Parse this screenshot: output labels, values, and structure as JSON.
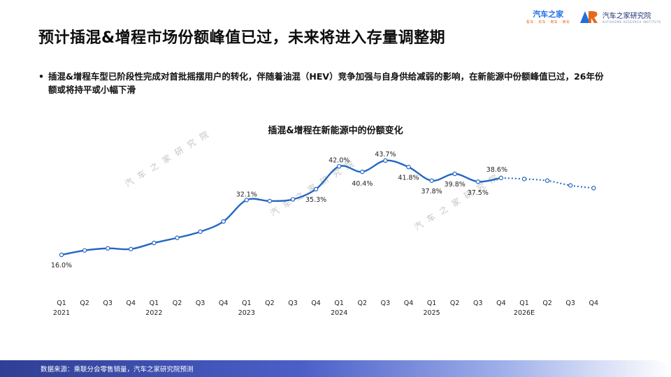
{
  "header": {
    "title": "预计插混&增程市场份额峰值已过，未来将进入存量调整期",
    "logo_primary": "汽车之家",
    "logo_primary_sub": "看车 · 买车 · 用车 · 换车",
    "logo_secondary": "汽车之家研究院",
    "logo_secondary_sub": "AUTOHOME RESEARCH INSTITUTE"
  },
  "bullet": {
    "symbol": "•",
    "text": "插混&增程车型已阶段性完成对首批摇摆用户的转化，伴随着油混（HEV）竞争加强与自身供给减弱的影响，在新能源中份额峰值已过，26年份额或将持平或小幅下滑"
  },
  "watermark": "汽车之家研究院",
  "chart_data": {
    "type": "line",
    "title": "插混&增程在新能源中的份额变化",
    "categories": [
      "Q1",
      "Q2",
      "Q3",
      "Q4",
      "Q1",
      "Q2",
      "Q3",
      "Q4",
      "Q1",
      "Q2",
      "Q3",
      "Q4",
      "Q1",
      "Q2",
      "Q3",
      "Q4",
      "Q1",
      "Q2",
      "Q3",
      "Q4",
      "Q1",
      "Q2",
      "Q3",
      "Q4"
    ],
    "year_labels": [
      "2021",
      "",
      "",
      "",
      "2022",
      "",
      "",
      "",
      "2023",
      "",
      "",
      "",
      "2024",
      "",
      "",
      "",
      "2025",
      "",
      "",
      "",
      "2026E",
      "",
      "",
      ""
    ],
    "series": [
      {
        "color": "#2566c2",
        "values": [
          16.0,
          17.3,
          17.9,
          17.7,
          19.5,
          21.0,
          22.8,
          25.8,
          32.1,
          31.8,
          32.3,
          35.3,
          42.0,
          40.4,
          43.7,
          41.8,
          37.8,
          39.8,
          37.5,
          38.6,
          38.3,
          37.8,
          36.4,
          35.6
        ],
        "data_labels": [
          "16.0%",
          "",
          "",
          "",
          "",
          "",
          "",
          "",
          "32.1%",
          "",
          "",
          "35.3%",
          "42.0%",
          "40.4%",
          "43.7%",
          "41.8%",
          "37.8%",
          "39.8%",
          "37.5%",
          "38.6%",
          "",
          "",
          "",
          ""
        ],
        "forecast_from_index": 19
      }
    ],
    "xlabel": "",
    "ylabel": "",
    "grid": false,
    "legend": "none"
  },
  "footer": {
    "source": "数据来源：乘联分会零售销量，汽车之家研究院预测"
  }
}
